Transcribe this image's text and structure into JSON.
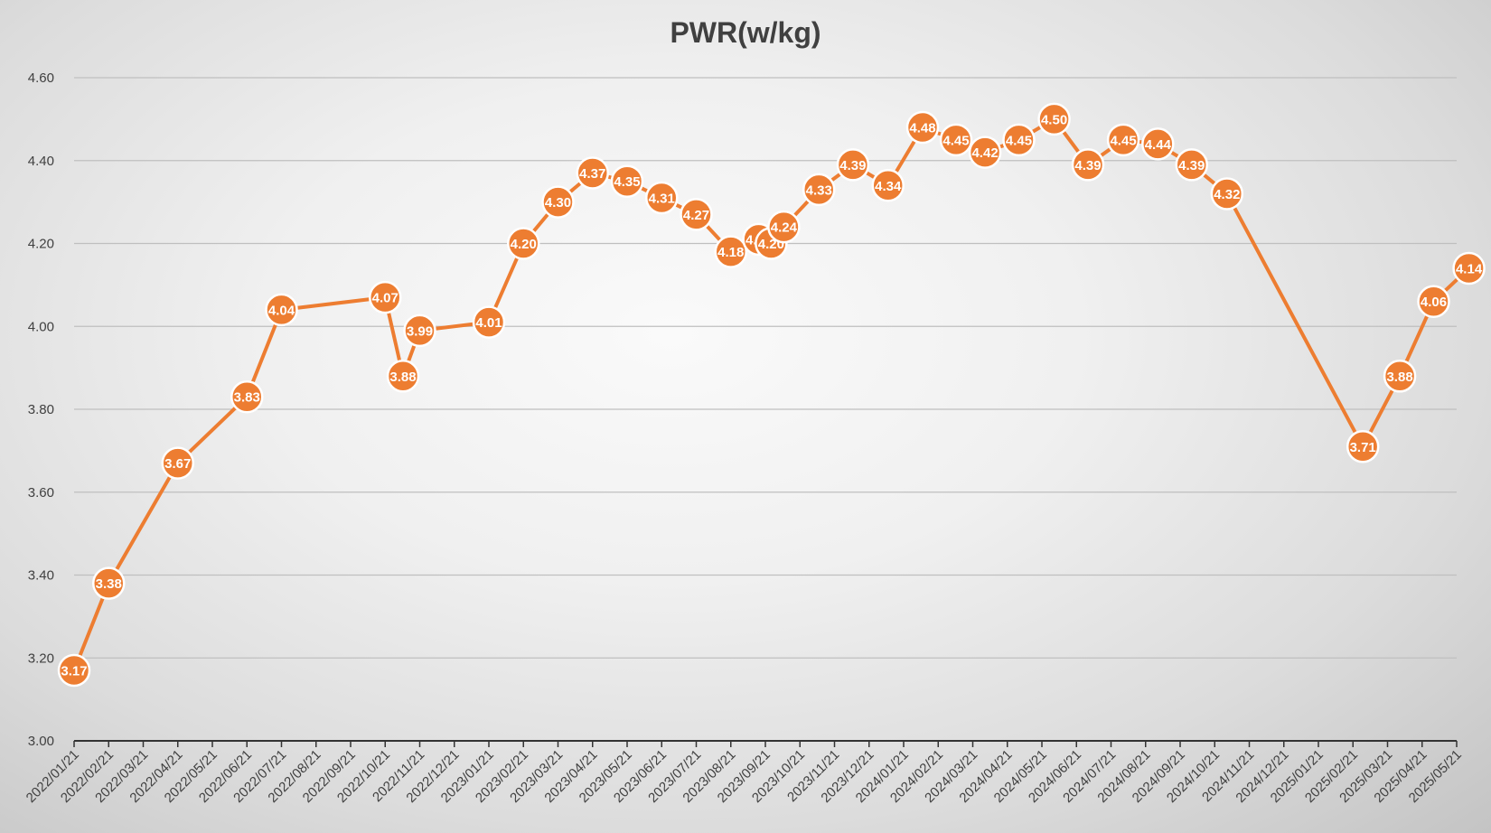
{
  "chart_data": {
    "type": "line",
    "title": "PWR(w/kg)",
    "xlabel": "",
    "ylabel": "",
    "ylim": [
      3.0,
      4.6
    ],
    "y_ticks": [
      "3.00",
      "3.20",
      "3.40",
      "3.60",
      "3.80",
      "4.00",
      "4.20",
      "4.40",
      "4.60"
    ],
    "grid": true,
    "legend": "none",
    "x_tick_labels": [
      "2022/01/21",
      "2022/02/21",
      "2022/03/21",
      "2022/04/21",
      "2022/05/21",
      "2022/06/21",
      "2022/07/21",
      "2022/08/21",
      "2022/09/21",
      "2022/10/21",
      "2022/11/21",
      "2022/12/21",
      "2023/01/21",
      "2023/02/21",
      "2023/03/21",
      "2023/04/21",
      "2023/05/21",
      "2023/06/21",
      "2023/07/21",
      "2023/08/21",
      "2023/09/21",
      "2023/10/21",
      "2023/11/21",
      "2023/12/21",
      "2024/01/21",
      "2024/02/21",
      "2024/03/21",
      "2024/04/21",
      "2024/05/21",
      "2024/06/21",
      "2024/07/21",
      "2024/08/21",
      "2024/09/21",
      "2024/10/21",
      "2024/11/21",
      "2024/12/21",
      "2025/01/21",
      "2025/02/21",
      "2025/03/21",
      "2025/04/21",
      "2025/05/21"
    ],
    "series": [
      {
        "color": "#ed7d31",
        "points": [
          {
            "x": "2022/01/21",
            "y": 3.17
          },
          {
            "x": "2022/02/21",
            "y": 3.38
          },
          {
            "x": "2022/04/21",
            "y": 3.67
          },
          {
            "x": "2022/06/21",
            "y": 3.83
          },
          {
            "x": "2022/07/21",
            "y": 4.04
          },
          {
            "x": "2022/10/21",
            "y": 4.07
          },
          {
            "x": "2022/11/06",
            "y": 3.88
          },
          {
            "x": "2022/11/21",
            "y": 3.99
          },
          {
            "x": "2023/01/21",
            "y": 4.01
          },
          {
            "x": "2023/02/21",
            "y": 4.2
          },
          {
            "x": "2023/03/21",
            "y": 4.3
          },
          {
            "x": "2023/04/21",
            "y": 4.37
          },
          {
            "x": "2023/05/21",
            "y": 4.35
          },
          {
            "x": "2023/06/21",
            "y": 4.31
          },
          {
            "x": "2023/07/21",
            "y": 4.27
          },
          {
            "x": "2023/08/21",
            "y": 4.18
          },
          {
            "x": "2023/09/15",
            "y": 4.21
          },
          {
            "x": "2023/09/26",
            "y": 4.2
          },
          {
            "x": "2023/10/07",
            "y": 4.24
          },
          {
            "x": "2023/11/07",
            "y": 4.33
          },
          {
            "x": "2023/12/07",
            "y": 4.39
          },
          {
            "x": "2024/01/07",
            "y": 4.34
          },
          {
            "x": "2024/02/07",
            "y": 4.48
          },
          {
            "x": "2024/03/07",
            "y": 4.45
          },
          {
            "x": "2024/04/01",
            "y": 4.42
          },
          {
            "x": "2024/05/01",
            "y": 4.45
          },
          {
            "x": "2024/06/01",
            "y": 4.5
          },
          {
            "x": "2024/07/01",
            "y": 4.39
          },
          {
            "x": "2024/08/01",
            "y": 4.45
          },
          {
            "x": "2024/09/01",
            "y": 4.44
          },
          {
            "x": "2024/10/01",
            "y": 4.39
          },
          {
            "x": "2024/11/01",
            "y": 4.32
          },
          {
            "x": "2025/03/01",
            "y": 3.71
          },
          {
            "x": "2025/04/01",
            "y": 3.88
          },
          {
            "x": "2025/05/01",
            "y": 4.06
          },
          {
            "x": "2025/06/01",
            "y": 4.14
          }
        ],
        "labels": [
          "3.17",
          "3.38",
          "3.67",
          "3.83",
          "4.04",
          "4.07",
          "3.88",
          "3.99",
          "4.01",
          "4.20",
          "4.30",
          "4.37",
          "4.35",
          "4.31",
          "4.27",
          "4.18",
          "4.21",
          "4.20",
          "4.24",
          "4.33",
          "4.39",
          "4.34",
          "4.48",
          "4.45",
          "4.42",
          "4.45",
          "4.50",
          "4.39",
          "4.45",
          "4.44",
          "4.39",
          "4.32",
          "3.71",
          "3.88",
          "4.06",
          "4.14"
        ]
      }
    ]
  }
}
